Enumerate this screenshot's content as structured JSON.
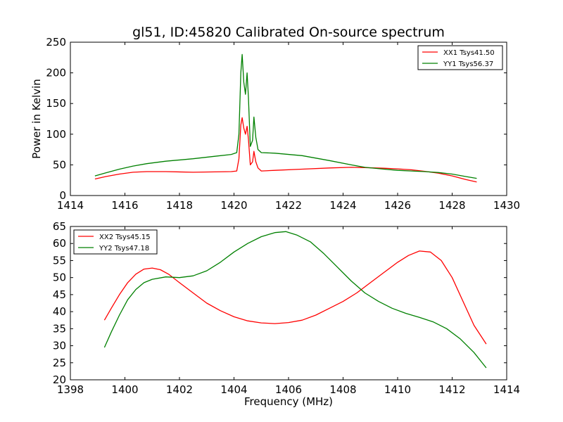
{
  "figure": {
    "title": "gl51, ID:45820 Calibrated On-source spectrum",
    "colors": {
      "red": "#ff0000",
      "green": "#008000",
      "axes": "#000000",
      "background": "#ffffff"
    }
  },
  "chart_data": [
    {
      "type": "line",
      "title": "gl51, ID:45820 Calibrated On-source spectrum",
      "xlabel": "",
      "ylabel": "Power in Kelvin",
      "xlim": [
        1414,
        1430
      ],
      "ylim": [
        0,
        250
      ],
      "xticks": [
        "1414",
        "1416",
        "1418",
        "1420",
        "1422",
        "1424",
        "1426",
        "1428",
        "1430"
      ],
      "yticks": [
        "0",
        "50",
        "100",
        "150",
        "200",
        "250"
      ],
      "legend": "top-right",
      "grid": false,
      "series": [
        {
          "name": "XX1 Tsys41.50",
          "color": "#ff0000",
          "x": [
            1414.9,
            1415.3,
            1415.8,
            1416.3,
            1416.8,
            1417.5,
            1418.5,
            1419.3,
            1419.9,
            1420.1,
            1420.18,
            1420.25,
            1420.3,
            1420.36,
            1420.42,
            1420.48,
            1420.53,
            1420.6,
            1420.68,
            1420.73,
            1420.8,
            1420.88,
            1421.0,
            1421.5,
            1422.5,
            1423.5,
            1424.3,
            1424.8,
            1425.5,
            1426.0,
            1426.5,
            1427.0,
            1427.5,
            1428.0,
            1428.5,
            1428.9
          ],
          "y": [
            27,
            31,
            35,
            38,
            39,
            39,
            38,
            38.5,
            39,
            40,
            60,
            115,
            127,
            110,
            100,
            113,
            92,
            50,
            55,
            72,
            55,
            45,
            40,
            41,
            43,
            45,
            46,
            45.5,
            44.5,
            43.5,
            42,
            39.5,
            36.5,
            32,
            26,
            22
          ]
        },
        {
          "name": "YY1 Tsys56.37",
          "color": "#008000",
          "x": [
            1414.9,
            1415.3,
            1415.8,
            1416.3,
            1416.8,
            1417.5,
            1418.5,
            1419.3,
            1419.9,
            1420.1,
            1420.18,
            1420.25,
            1420.3,
            1420.36,
            1420.42,
            1420.48,
            1420.53,
            1420.6,
            1420.68,
            1420.73,
            1420.8,
            1420.88,
            1421.0,
            1421.5,
            1422.5,
            1423.5,
            1424.3,
            1424.8,
            1425.5,
            1426.0,
            1426.5,
            1427.0,
            1427.5,
            1428.0,
            1428.5,
            1428.9
          ],
          "y": [
            32,
            37,
            43,
            48,
            52,
            56,
            60,
            64,
            67,
            70,
            100,
            200,
            230,
            185,
            165,
            200,
            160,
            80,
            90,
            128,
            95,
            75,
            70,
            69,
            65,
            57,
            50,
            46,
            43,
            41,
            40,
            39,
            37.5,
            35,
            31,
            28
          ]
        }
      ]
    },
    {
      "type": "line",
      "title": "",
      "xlabel": "Frequency (MHz)",
      "ylabel": "",
      "xlim": [
        1398,
        1414
      ],
      "ylim": [
        20,
        65
      ],
      "xticks": [
        "1398",
        "1400",
        "1402",
        "1404",
        "1406",
        "1408",
        "1410",
        "1412",
        "1414"
      ],
      "yticks": [
        "20",
        "25",
        "30",
        "35",
        "40",
        "45",
        "50",
        "55",
        "60",
        "65"
      ],
      "legend": "top-left",
      "grid": false,
      "series": [
        {
          "name": "XX2 Tsys45.15",
          "color": "#ff0000",
          "x": [
            1399.25,
            1399.5,
            1399.8,
            1400.1,
            1400.4,
            1400.7,
            1401.0,
            1401.3,
            1401.6,
            1402.0,
            1402.5,
            1403.0,
            1403.5,
            1404.0,
            1404.5,
            1405.0,
            1405.5,
            1406.0,
            1406.5,
            1407.0,
            1407.5,
            1408.0,
            1408.5,
            1409.0,
            1409.5,
            1410.0,
            1410.4,
            1410.8,
            1411.2,
            1411.6,
            1412.0,
            1412.4,
            1412.8,
            1413.25
          ],
          "y": [
            37.5,
            41,
            45,
            48.5,
            51,
            52.5,
            52.8,
            52.3,
            51,
            48.5,
            45.5,
            42.5,
            40.3,
            38.5,
            37.3,
            36.7,
            36.5,
            36.8,
            37.5,
            39,
            41,
            43,
            45.5,
            48.5,
            51.5,
            54.5,
            56.5,
            57.8,
            57.5,
            55,
            50,
            43,
            36,
            30.5
          ]
        },
        {
          "name": "YY2 Tsys47.18",
          "color": "#008000",
          "x": [
            1399.25,
            1399.5,
            1399.8,
            1400.1,
            1400.4,
            1400.7,
            1401.0,
            1401.5,
            1402.0,
            1402.5,
            1403.0,
            1403.5,
            1404.0,
            1404.5,
            1405.0,
            1405.5,
            1405.9,
            1406.3,
            1406.8,
            1407.3,
            1407.8,
            1408.3,
            1408.8,
            1409.3,
            1409.8,
            1410.3,
            1410.8,
            1411.3,
            1411.8,
            1412.3,
            1412.8,
            1413.25
          ],
          "y": [
            29.5,
            34,
            39,
            43.5,
            46.5,
            48.5,
            49.5,
            50.2,
            50,
            50.5,
            52,
            54.5,
            57.5,
            60,
            62,
            63.2,
            63.5,
            62.5,
            60.5,
            57,
            53,
            49,
            45.5,
            43,
            41,
            39.5,
            38.3,
            37,
            35,
            32,
            28,
            23.5
          ]
        }
      ]
    }
  ]
}
